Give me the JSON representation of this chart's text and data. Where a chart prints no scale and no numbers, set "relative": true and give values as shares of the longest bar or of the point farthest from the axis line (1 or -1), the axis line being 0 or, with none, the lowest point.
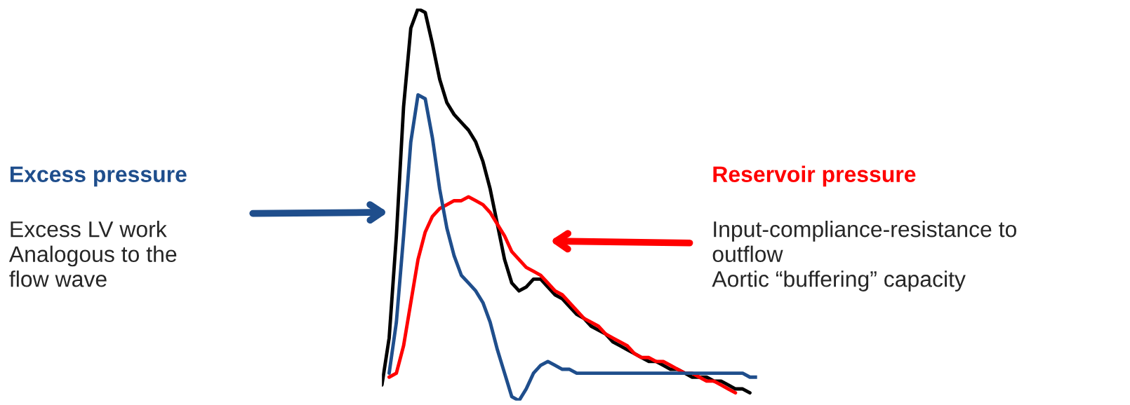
{
  "chart_data": {
    "type": "line",
    "relative": true,
    "categories": [
      null,
      null,
      null,
      null,
      null,
      null,
      null,
      null,
      null,
      null,
      null,
      null,
      null,
      null,
      null,
      null,
      null,
      null,
      null,
      null,
      null,
      null,
      null,
      null,
      null,
      null,
      null,
      null,
      null,
      null,
      null,
      null,
      null,
      null,
      null,
      null,
      null,
      null,
      null,
      null,
      null,
      null,
      null,
      null,
      null,
      null,
      null,
      null,
      null,
      null,
      null,
      null,
      null
    ],
    "series": [
      {
        "color": "#000000",
        "values": [
          0.04,
          0.16,
          0.42,
          0.75,
          0.95,
          1.0,
          0.99,
          0.91,
          0.82,
          0.76,
          0.73,
          0.71,
          0.69,
          0.66,
          0.61,
          0.54,
          0.45,
          0.36,
          0.3,
          0.28,
          0.29,
          0.31,
          0.31,
          0.29,
          0.27,
          0.26,
          0.24,
          0.22,
          0.21,
          0.19,
          0.18,
          0.17,
          0.15,
          0.14,
          0.13,
          0.12,
          0.11,
          0.1,
          0.1,
          0.09,
          0.08,
          0.08,
          0.07,
          0.06,
          0.06,
          0.06,
          0.05,
          0.05,
          0.04,
          0.03,
          0.03,
          0.02,
          null
        ]
      },
      {
        "name": "Reservoir pressure",
        "color": "#ff0000",
        "values": [
          null,
          0.06,
          0.07,
          0.14,
          0.25,
          0.36,
          0.43,
          0.47,
          0.49,
          0.5,
          0.51,
          0.51,
          0.52,
          0.51,
          0.5,
          0.48,
          0.45,
          0.42,
          0.38,
          0.36,
          0.34,
          0.33,
          0.32,
          0.3,
          0.28,
          0.27,
          0.25,
          0.23,
          0.21,
          0.2,
          0.19,
          0.17,
          0.16,
          0.15,
          0.14,
          0.12,
          0.11,
          0.11,
          0.1,
          0.1,
          0.09,
          0.08,
          0.07,
          0.07,
          0.06,
          0.05,
          0.05,
          0.04,
          0.03,
          0.02,
          null,
          null,
          null
        ]
      },
      {
        "name": "Excess pressure",
        "color": "#1f4e8c",
        "values": [
          null,
          0.07,
          0.2,
          0.42,
          0.66,
          0.78,
          0.77,
          0.67,
          0.54,
          0.44,
          0.37,
          0.32,
          0.3,
          0.28,
          0.25,
          0.2,
          0.13,
          0.07,
          0.01,
          0.0,
          0.03,
          0.07,
          0.09,
          0.1,
          0.09,
          0.08,
          0.08,
          0.07,
          0.07,
          0.07,
          0.07,
          0.07,
          0.07,
          0.07,
          0.07,
          0.07,
          0.07,
          0.07,
          0.07,
          0.07,
          0.07,
          0.07,
          0.07,
          0.07,
          0.07,
          0.07,
          0.07,
          0.07,
          0.07,
          0.07,
          0.07,
          0.06,
          0.06
        ]
      }
    ],
    "annotations": [
      "Excess LV work\nAnalogous to the\nflow wave",
      "Input-compliance-resistance to\noutflow\nAortic “buffering” capacity"
    ]
  }
}
